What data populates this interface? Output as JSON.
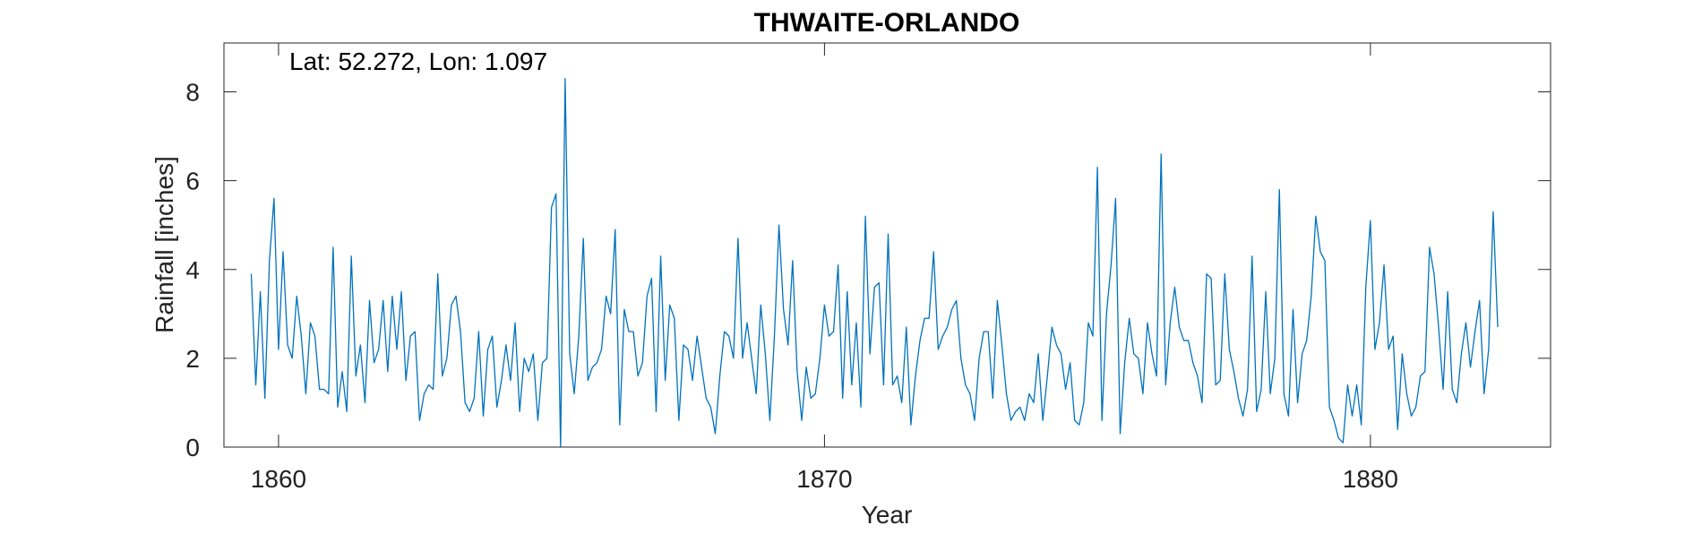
{
  "chart_data": {
    "type": "line",
    "title": "THWAITE-ORLANDO",
    "xlabel": "Year",
    "ylabel": "Rainfall [inches]",
    "annotation": "Lat: 52.272, Lon: 1.097",
    "xlim": [
      1859,
      1883.3
    ],
    "ylim": [
      0,
      9.1
    ],
    "xticks": [
      1860,
      1870,
      1880
    ],
    "yticks": [
      0,
      2,
      4,
      6,
      8
    ],
    "xtick_labels": [
      "1860",
      "1870",
      "1880"
    ],
    "ytick_labels": [
      "0",
      "2",
      "4",
      "6",
      "8"
    ],
    "grid": false,
    "line_color": "#0072BD",
    "series": [
      {
        "x_start": 1859.5,
        "x_step": 0.08333,
        "values": [
          3.9,
          1.4,
          3.5,
          1.1,
          4.2,
          5.6,
          2.2,
          4.4,
          2.3,
          2.0,
          3.4,
          2.5,
          1.2,
          2.8,
          2.5,
          1.3,
          1.3,
          1.2,
          4.5,
          0.9,
          1.7,
          0.8,
          4.3,
          1.6,
          2.3,
          1.0,
          3.3,
          1.9,
          2.2,
          3.3,
          1.7,
          3.4,
          2.2,
          3.5,
          1.5,
          2.5,
          2.6,
          0.6,
          1.2,
          1.4,
          1.3,
          3.9,
          1.6,
          2.0,
          3.2,
          3.4,
          2.6,
          1.0,
          0.8,
          1.1,
          2.6,
          0.7,
          2.2,
          2.5,
          0.9,
          1.5,
          2.3,
          1.5,
          2.8,
          0.8,
          2.0,
          1.7,
          2.1,
          0.6,
          1.9,
          2.0,
          5.4,
          5.7,
          0.0,
          8.3,
          2.1,
          1.2,
          2.5,
          4.7,
          1.5,
          1.8,
          1.9,
          2.2,
          3.4,
          3.0,
          4.9,
          0.5,
          3.1,
          2.6,
          2.6,
          1.6,
          1.9,
          3.4,
          3.8,
          0.8,
          4.3,
          1.5,
          3.2,
          2.9,
          0.6,
          2.3,
          2.2,
          1.5,
          2.5,
          1.8,
          1.1,
          0.9,
          0.3,
          1.6,
          2.6,
          2.5,
          2.0,
          4.7,
          2.0,
          2.8,
          2.0,
          1.2,
          3.2,
          2.1,
          0.6,
          2.5,
          5.0,
          3.1,
          2.3,
          4.2,
          1.7,
          0.6,
          1.8,
          1.1,
          1.2,
          2.0,
          3.2,
          2.5,
          2.6,
          4.1,
          1.1,
          3.5,
          1.4,
          2.8,
          0.9,
          5.2,
          2.1,
          3.6,
          3.7,
          1.4,
          4.8,
          1.4,
          1.6,
          1.0,
          2.7,
          0.5,
          1.6,
          2.4,
          2.9,
          2.9,
          4.4,
          2.2,
          2.5,
          2.7,
          3.1,
          3.3,
          2.0,
          1.4,
          1.2,
          0.6,
          2.0,
          2.6,
          2.6,
          1.1,
          3.3,
          2.3,
          1.2,
          0.6,
          0.8,
          0.9,
          0.6,
          1.2,
          1.0,
          2.1,
          0.6,
          1.6,
          2.7,
          2.3,
          2.1,
          1.3,
          1.9,
          0.6,
          0.5,
          1.0,
          2.8,
          2.5,
          6.3,
          0.6,
          3.0,
          4.1,
          5.6,
          0.3,
          1.9,
          2.9,
          2.1,
          2.0,
          1.2,
          2.8,
          2.1,
          1.6,
          6.6,
          1.4,
          2.8,
          3.6,
          2.7,
          2.4,
          2.4,
          1.9,
          1.6,
          1.0,
          3.9,
          3.8,
          1.4,
          1.5,
          3.9,
          2.2,
          1.7,
          1.1,
          0.7,
          1.3,
          4.3,
          0.8,
          1.3,
          3.5,
          1.2,
          2.0,
          5.8,
          1.2,
          0.7,
          3.1,
          1.0,
          2.1,
          2.4,
          3.4,
          5.2,
          4.4,
          4.2,
          0.9,
          0.6,
          0.2,
          0.1,
          1.4,
          0.7,
          1.4,
          0.5,
          3.6,
          5.1,
          2.2,
          2.8,
          4.1,
          2.2,
          2.5,
          0.4,
          2.1,
          1.2,
          0.7,
          0.9,
          1.6,
          1.7,
          4.5,
          3.9,
          2.7,
          1.3,
          3.5,
          1.3,
          1.0,
          2.1,
          2.8,
          1.8,
          2.6,
          3.3,
          1.2,
          2.2,
          5.3,
          2.7
        ]
      }
    ]
  }
}
